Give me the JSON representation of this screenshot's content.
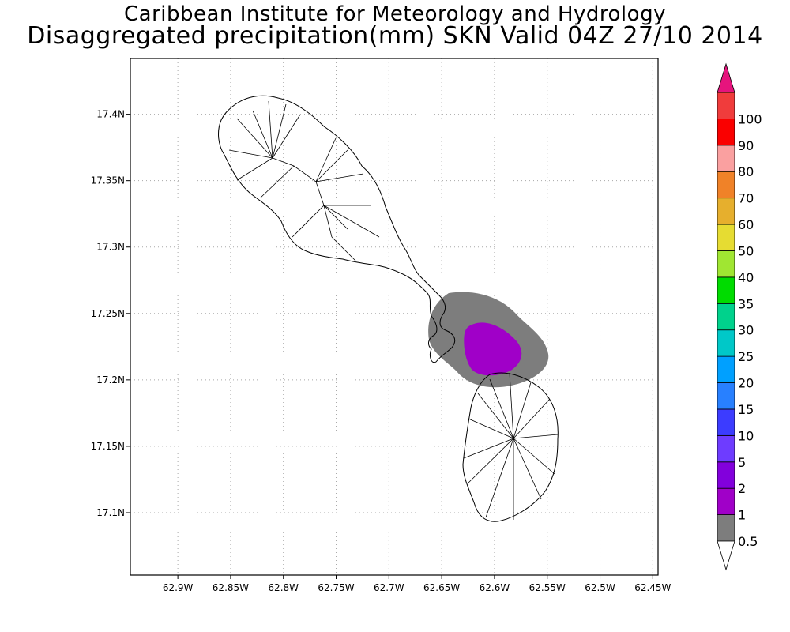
{
  "title": {
    "line1": "Caribbean Institute for Meteorology and Hydrology",
    "line2": "Disaggregated precipitation(mm) SKN Valid 04Z 27/10 2014"
  },
  "map": {
    "lon_range": [
      -62.945,
      -62.445
    ],
    "lat_range": [
      17.053,
      17.442
    ],
    "x_ticks": [
      {
        "value": -62.9,
        "label": "62.9W"
      },
      {
        "value": -62.85,
        "label": "62.85W"
      },
      {
        "value": -62.8,
        "label": "62.8W"
      },
      {
        "value": -62.75,
        "label": "62.75W"
      },
      {
        "value": -62.7,
        "label": "62.7W"
      },
      {
        "value": -62.65,
        "label": "62.65W"
      },
      {
        "value": -62.6,
        "label": "62.6W"
      },
      {
        "value": -62.55,
        "label": "62.55W"
      },
      {
        "value": -62.5,
        "label": "62.5W"
      },
      {
        "value": -62.45,
        "label": "62.45W"
      }
    ],
    "y_ticks": [
      {
        "value": 17.4,
        "label": "17.4N"
      },
      {
        "value": 17.35,
        "label": "17.35N"
      },
      {
        "value": 17.3,
        "label": "17.3N"
      },
      {
        "value": 17.25,
        "label": "17.25N"
      },
      {
        "value": 17.2,
        "label": "17.2N"
      },
      {
        "value": 17.15,
        "label": "17.15N"
      },
      {
        "value": 17.1,
        "label": "17.1N"
      }
    ],
    "grid": "dotted",
    "islands": [
      "St Kitts",
      "Nevis"
    ],
    "precip_areas": [
      {
        "range": "0.5-1",
        "color": "#7d7d7d"
      },
      {
        "range": "1-2",
        "color": "#a000c8"
      }
    ]
  },
  "colorbar": {
    "levels": [
      "0.5",
      "1",
      "2",
      "5",
      "10",
      "15",
      "20",
      "25",
      "30",
      "35",
      "40",
      "50",
      "60",
      "70",
      "80",
      "90",
      "100"
    ],
    "colors": [
      "#7d7d7d",
      "#a000c8",
      "#8200dc",
      "#6e3cff",
      "#3c3cff",
      "#2880ff",
      "#00a0ff",
      "#00c8c8",
      "#00d28c",
      "#00dc00",
      "#a0e632",
      "#e6dc32",
      "#e6af2d",
      "#f08228",
      "#faa0a0",
      "#fa0000",
      "#f03c3c"
    ],
    "over_color": "#e6147d",
    "under_color": "#ffffff"
  }
}
